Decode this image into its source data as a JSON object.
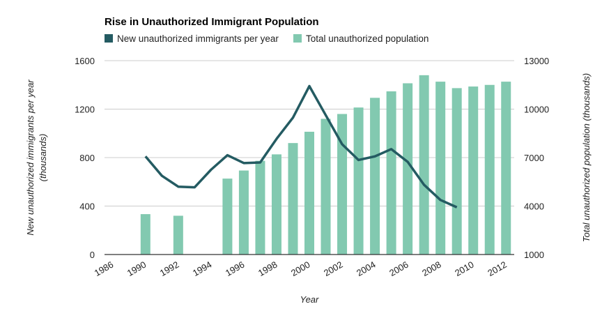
{
  "chart_data": {
    "type": "bar",
    "title": "Rise in Unauthorized Immigrant Population",
    "xlabel": "Year",
    "ylabel_left": "New unauthorized immigrants per year (thousands)",
    "ylabel_left_lines": [
      "New unauthorized immigrants per year",
      "(thousands)"
    ],
    "ylabel_right": "Total unauthorized population (thousands)",
    "legend_position": "top-left",
    "grid": true,
    "categories": [
      "1986",
      "",
      "1990",
      "1991",
      "1992",
      "1993",
      "1994",
      "1995",
      "1996",
      "1997",
      "1998",
      "1999",
      "2000",
      "2001",
      "2002",
      "2003",
      "2004",
      "2005",
      "2006",
      "2007",
      "2008",
      "2009",
      "2010",
      "2011",
      "2012"
    ],
    "x_tick_labels": [
      "1986",
      "1990",
      "1992",
      "1994",
      "1996",
      "1998",
      "2000",
      "2002",
      "2004",
      "2006",
      "2008",
      "2010",
      "2012"
    ],
    "y_left": {
      "ylim": [
        0,
        1600
      ],
      "ticks": [
        0,
        400,
        800,
        1200,
        1600
      ]
    },
    "y_right": {
      "ylim": [
        1000,
        13000
      ],
      "ticks": [
        1000,
        4000,
        7000,
        10000,
        13000
      ]
    },
    "series": [
      {
        "name": "New unauthorized immigrants per year",
        "type": "line",
        "axis": "left",
        "color": "#245b62",
        "values": [
          null,
          null,
          810,
          650,
          560,
          555,
          700,
          820,
          755,
          760,
          955,
          1130,
          1390,
          1150,
          910,
          780,
          810,
          870,
          765,
          575,
          450,
          390,
          null,
          null,
          null
        ]
      },
      {
        "name": "Total unauthorized population",
        "type": "bar",
        "axis": "right",
        "color": "#82c9b0",
        "values": [
          null,
          null,
          3500,
          null,
          3400,
          null,
          null,
          5700,
          6200,
          6800,
          7200,
          7900,
          8600,
          9400,
          9700,
          10100,
          10700,
          11100,
          11600,
          12100,
          11700,
          11300,
          11400,
          11500,
          11700
        ]
      }
    ]
  }
}
